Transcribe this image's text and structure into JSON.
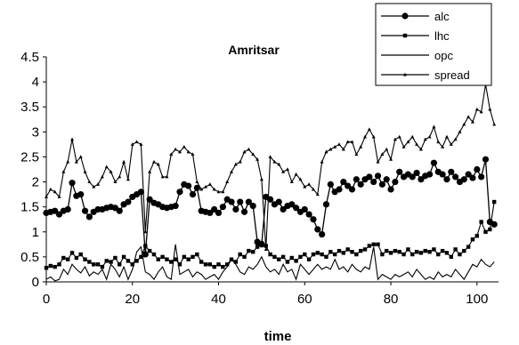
{
  "chart_data": {
    "type": "line",
    "title": "Amritsar",
    "xlabel": "time",
    "ylabel": "",
    "xlim": [
      0,
      105
    ],
    "ylim": [
      0,
      4.5
    ],
    "xticks": [
      "0",
      "20",
      "40",
      "60",
      "80",
      "100"
    ],
    "yticks": [
      "0",
      "0.5",
      "1",
      "1.5",
      "2",
      "2.5",
      "3",
      "3.5",
      "4",
      "4.5"
    ],
    "grid": false,
    "legend_position": "top-right",
    "colors": {
      "line": "#000000",
      "background": "#ffffff"
    },
    "series": [
      {
        "name": "alc",
        "marker": "circle",
        "values": [
          1.38,
          1.4,
          1.42,
          1.35,
          1.42,
          1.45,
          1.98,
          1.72,
          1.75,
          1.42,
          1.3,
          1.4,
          1.45,
          1.45,
          1.48,
          1.5,
          1.48,
          1.42,
          1.55,
          1.6,
          1.7,
          1.75,
          1.8,
          0.55,
          1.65,
          1.58,
          1.55,
          1.5,
          1.48,
          1.5,
          1.52,
          1.8,
          1.95,
          1.92,
          1.75,
          1.88,
          1.42,
          1.4,
          1.38,
          1.45,
          1.38,
          1.5,
          1.65,
          1.6,
          1.45,
          1.6,
          1.4,
          1.6,
          1.52,
          0.8,
          0.75,
          1.7,
          1.65,
          1.55,
          1.6,
          1.45,
          1.52,
          1.55,
          1.48,
          1.4,
          1.45,
          1.35,
          1.25,
          1.05,
          0.95,
          1.55,
          1.95,
          1.8,
          1.85,
          2.0,
          1.92,
          1.85,
          2.05,
          1.95,
          2.05,
          2.1,
          2.0,
          2.12,
          1.95,
          2.05,
          1.85,
          2.0,
          2.2,
          2.1,
          2.15,
          2.1,
          2.18,
          2.05,
          2.12,
          2.15,
          2.38,
          2.2,
          2.15,
          2.05,
          2.2,
          2.1,
          2.0,
          2.05,
          2.15,
          2.08,
          2.25,
          2.1,
          2.45,
          1.2,
          1.15
        ],
        "x_start": 0,
        "x_step": 1
      },
      {
        "name": "lhc",
        "marker": "square",
        "values": [
          0.28,
          0.32,
          0.3,
          0.35,
          0.48,
          0.45,
          0.58,
          0.48,
          0.55,
          0.45,
          0.4,
          0.35,
          0.35,
          0.3,
          0.42,
          0.4,
          0.48,
          0.35,
          0.5,
          0.42,
          0.35,
          0.42,
          0.5,
          0.72,
          0.62,
          0.55,
          0.45,
          0.5,
          0.45,
          0.4,
          0.45,
          0.35,
          0.5,
          0.45,
          0.5,
          0.55,
          0.4,
          0.35,
          0.35,
          0.3,
          0.35,
          0.3,
          0.35,
          0.45,
          0.4,
          0.55,
          0.5,
          0.62,
          0.6,
          0.7,
          0.78,
          0.72,
          0.55,
          0.5,
          0.45,
          0.5,
          0.4,
          0.48,
          0.42,
          0.5,
          0.55,
          0.45,
          0.55,
          0.58,
          0.55,
          0.5,
          0.6,
          0.55,
          0.62,
          0.58,
          0.65,
          0.6,
          0.55,
          0.62,
          0.65,
          0.72,
          0.75,
          0.75,
          0.55,
          0.62,
          0.58,
          0.62,
          0.6,
          0.55,
          0.65,
          0.55,
          0.6,
          0.58,
          0.62,
          0.6,
          0.65,
          0.55,
          0.62,
          0.58,
          0.5,
          0.65,
          0.55,
          0.62,
          0.7,
          0.85,
          0.92,
          1.2,
          1.0,
          1.05,
          1.6
        ],
        "x_start": 0,
        "x_step": 1
      },
      {
        "name": "opc",
        "marker": "none",
        "values": [
          0.05,
          0.1,
          0.02,
          0.05,
          0.25,
          0.15,
          0.35,
          0.25,
          0.18,
          0.3,
          0.12,
          0.2,
          0.15,
          0.25,
          0.05,
          0.35,
          0.25,
          0.1,
          0.3,
          0.05,
          0.25,
          0.6,
          0.7,
          0.2,
          0.15,
          0.05,
          0.2,
          0.3,
          0.1,
          0.05,
          0.75,
          0.15,
          0.2,
          0.25,
          0.1,
          0.2,
          0.15,
          0.05,
          0.1,
          0.15,
          0.05,
          0.2,
          0.3,
          0.45,
          0.35,
          0.2,
          0.15,
          0.3,
          0.25,
          0.35,
          0.5,
          0.3,
          0.2,
          0.25,
          0.15,
          0.35,
          0.2,
          0.25,
          0.05,
          0.35,
          0.25,
          0.15,
          0.25,
          0.35,
          0.25,
          0.3,
          0.25,
          0.45,
          0.25,
          0.3,
          0.2,
          0.35,
          0.25,
          0.2,
          0.3,
          0.25,
          0.7,
          0.05,
          0.15,
          0.1,
          0.05,
          0.15,
          0.1,
          0.15,
          0.2,
          0.1,
          0.25,
          0.15,
          0.05,
          0.1,
          0.05,
          0.2,
          0.1,
          0.15,
          0.1,
          0.25,
          0.15,
          0.05,
          0.2,
          0.35,
          0.3,
          0.45,
          0.35,
          0.3,
          0.4
        ],
        "x_start": 0,
        "x_step": 1
      },
      {
        "name": "spread",
        "marker": "triangle",
        "values": [
          1.7,
          1.85,
          1.8,
          1.7,
          2.2,
          2.4,
          2.85,
          2.4,
          2.5,
          2.2,
          2.0,
          1.9,
          1.95,
          2.1,
          2.3,
          2.2,
          2.0,
          2.1,
          2.4,
          2.05,
          2.75,
          2.8,
          2.75,
          1.0,
          2.2,
          2.4,
          2.35,
          2.1,
          2.1,
          2.55,
          2.65,
          2.6,
          2.7,
          2.6,
          2.55,
          2.0,
          1.85,
          1.9,
          1.95,
          1.85,
          1.8,
          1.8,
          2.0,
          2.2,
          2.35,
          2.4,
          2.6,
          2.65,
          2.55,
          2.45,
          2.05,
          0.65,
          2.5,
          2.4,
          2.35,
          2.2,
          2.25,
          2.0,
          2.15,
          2.05,
          1.9,
          1.95,
          1.85,
          1.75,
          2.4,
          2.6,
          2.65,
          2.7,
          2.75,
          2.65,
          2.8,
          2.8,
          2.55,
          2.7,
          2.9,
          3.05,
          2.9,
          2.4,
          2.55,
          2.65,
          2.45,
          2.85,
          2.9,
          2.7,
          2.8,
          2.9,
          2.75,
          2.65,
          2.85,
          2.9,
          3.1,
          2.8,
          2.7,
          2.9,
          2.75,
          2.85,
          3.0,
          3.15,
          3.3,
          3.2,
          3.45,
          3.4,
          3.95,
          3.45,
          3.15
        ],
        "x_start": 0,
        "x_step": 1
      }
    ]
  }
}
